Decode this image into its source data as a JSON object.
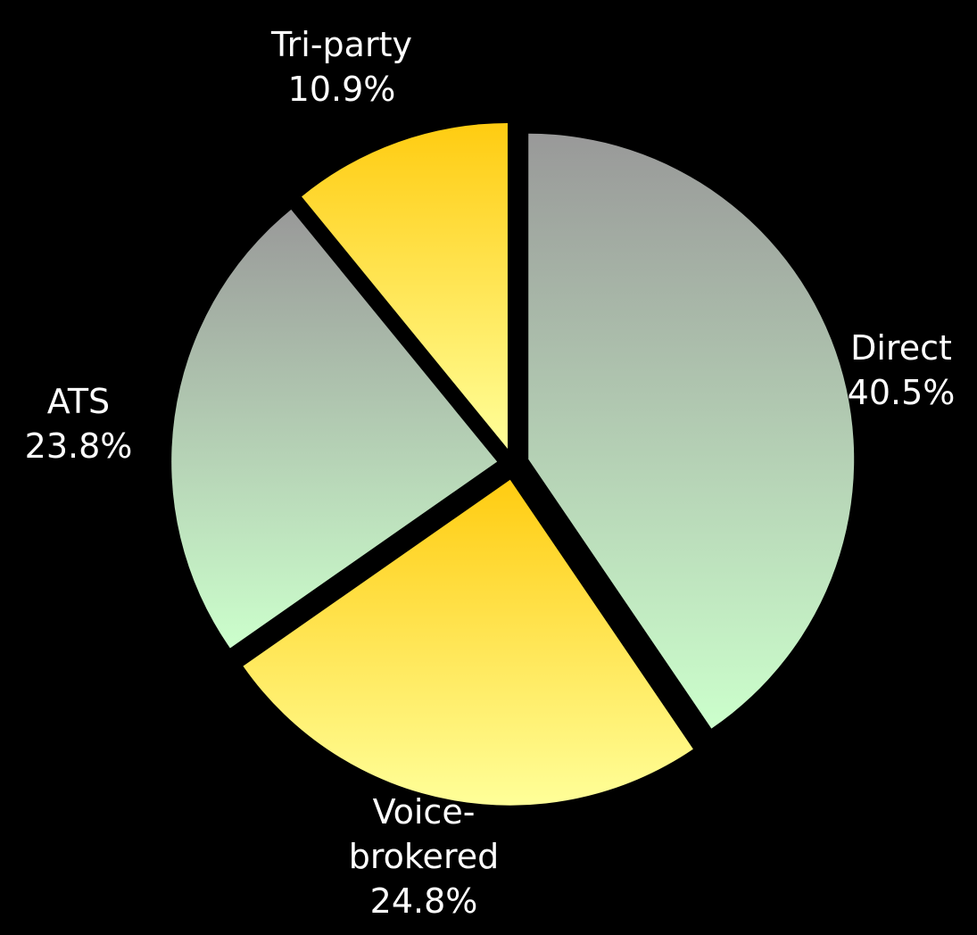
{
  "chart_data": {
    "type": "pie",
    "categories": [
      "Direct",
      "Voice-brokered",
      "ATS",
      "Tri-party"
    ],
    "values": [
      40.5,
      24.8,
      23.8,
      10.9
    ],
    "value_labels": [
      "40.5%",
      "24.8%",
      "23.8%",
      "10.9%"
    ],
    "gradients": [
      [
        "#999999",
        "#ccffcc"
      ],
      [
        "#ffcc11",
        "#ffff99"
      ],
      [
        "#999999",
        "#ccffcc"
      ],
      [
        "#ffcc11",
        "#ffff99"
      ]
    ],
    "start_angle": 0,
    "direction": "clockwise",
    "exploded": true
  }
}
